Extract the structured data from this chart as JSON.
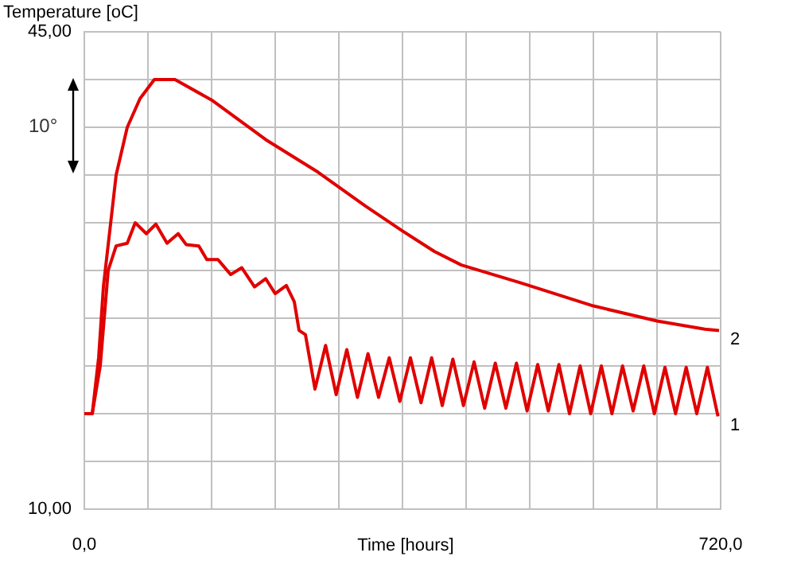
{
  "chart_data": {
    "type": "line",
    "xlabel": "Time [hours]",
    "ylabel": "Temperature [oC]",
    "annotations": [
      "10°"
    ],
    "xlim": [
      0,
      720
    ],
    "ylim": [
      10,
      45
    ],
    "xticks": [
      {
        "value": 0,
        "label": "0,0"
      },
      {
        "value": 72,
        "label": null
      },
      {
        "value": 144,
        "label": null
      },
      {
        "value": 216,
        "label": null
      },
      {
        "value": 288,
        "label": null
      },
      {
        "value": 360,
        "label": null
      },
      {
        "value": 432,
        "label": null
      },
      {
        "value": 504,
        "label": null
      },
      {
        "value": 576,
        "label": null
      },
      {
        "value": 648,
        "label": null
      },
      {
        "value": 720,
        "label": "720,0"
      }
    ],
    "yticks": [
      {
        "value": 10,
        "label": "10,00"
      },
      {
        "value": 13.5,
        "label": null
      },
      {
        "value": 17,
        "label": null
      },
      {
        "value": 20.5,
        "label": null
      },
      {
        "value": 24,
        "label": null
      },
      {
        "value": 27.5,
        "label": null
      },
      {
        "value": 31,
        "label": null
      },
      {
        "value": 34.5,
        "label": null
      },
      {
        "value": 38,
        "label": null
      },
      {
        "value": 41.5,
        "label": null
      },
      {
        "value": 45,
        "label": "45,00"
      }
    ],
    "grid": true,
    "legend": false,
    "marker": "none",
    "line_style": "solid",
    "series": [
      {
        "name": "1",
        "color": "#e00000",
        "x": [
          0,
          9,
          18,
          27,
          36,
          48.6,
          57.6,
          70.2,
          81,
          93.6,
          106.2,
          115.2,
          129.6,
          138.6,
          151.2,
          165.6,
          178.2,
          192.6,
          205.2,
          216,
          228.6,
          237.6,
          243,
          250.2,
          261,
          273,
          285,
          297,
          309,
          321,
          333,
          345,
          357,
          369,
          381,
          393,
          405,
          417,
          429,
          441,
          453,
          465,
          477,
          489,
          501,
          513,
          525,
          537,
          549,
          561,
          573,
          585,
          597,
          609,
          621,
          633,
          645,
          657,
          669,
          681,
          693,
          705,
          717
        ],
        "values": [
          17.0,
          17.0,
          20.5,
          27.5,
          29.3,
          29.5,
          31.0,
          30.2,
          30.9,
          29.5,
          30.2,
          29.4,
          29.3,
          28.3,
          28.3,
          27.2,
          27.7,
          26.3,
          26.9,
          25.8,
          26.4,
          25.2,
          23.1,
          22.8,
          18.8,
          22.0,
          18.4,
          21.7,
          18.2,
          21.4,
          18.2,
          21.1,
          17.9,
          21.1,
          17.8,
          21.1,
          17.6,
          21.0,
          17.6,
          20.8,
          17.4,
          20.7,
          17.4,
          20.7,
          17.2,
          20.6,
          17.2,
          20.6,
          17.0,
          20.5,
          17.0,
          20.5,
          17.0,
          20.5,
          17.2,
          20.5,
          17.0,
          20.4,
          17.0,
          20.4,
          17.0,
          20.4,
          16.8
        ]
      },
      {
        "name": "2",
        "color": "#e00000",
        "x": [
          0,
          9,
          16.2,
          21.6,
          36,
          48.6,
          63,
          79.2,
          102.6,
          144,
          205.2,
          264.6,
          318.6,
          360,
          396,
          426.6,
          493.2,
          576,
          648,
          702,
          718.2
        ],
        "values": [
          17.0,
          17.0,
          21.1,
          26.3,
          34.5,
          38.0,
          40.1,
          41.5,
          41.5,
          40.0,
          37.1,
          34.7,
          32.2,
          30.4,
          28.9,
          27.9,
          26.6,
          24.9,
          23.8,
          23.2,
          23.1
        ]
      }
    ]
  }
}
